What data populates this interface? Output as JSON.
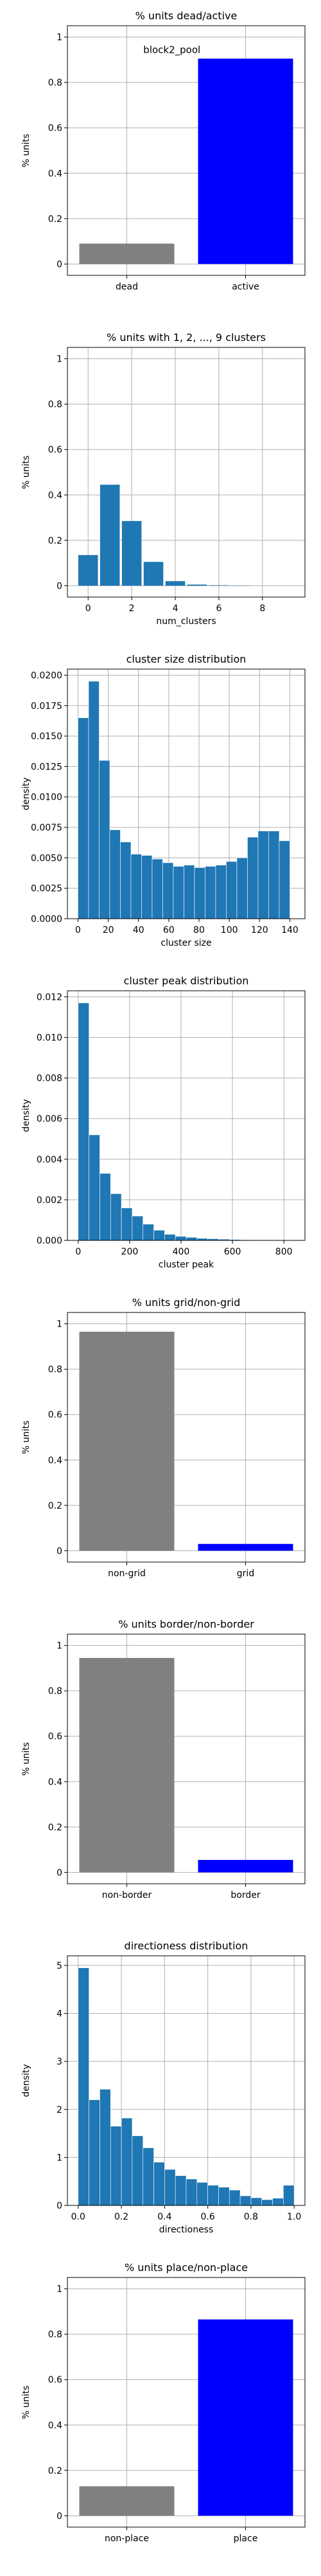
{
  "chart_data": [
    {
      "type": "bar",
      "title": "% units dead/active",
      "xlabel": "",
      "ylabel": "% units",
      "annotation": "block2_pool",
      "categories": [
        "dead",
        "active"
      ],
      "values": [
        0.09,
        0.905
      ],
      "colors": [
        "#808080",
        "#0000ff"
      ],
      "ylim": [
        -0.05,
        1.05
      ],
      "yticks": [
        0.0,
        0.2,
        0.4,
        0.6,
        0.8,
        1.0
      ],
      "grid": true
    },
    {
      "type": "bar",
      "title": "% units with 1, 2, ..., 9 clusters",
      "xlabel": "num_clusters",
      "ylabel": "% units",
      "x": [
        0,
        1,
        2,
        3,
        4,
        5,
        6,
        7,
        8,
        9
      ],
      "values": [
        0.135,
        0.445,
        0.285,
        0.105,
        0.02,
        0.005,
        0.002,
        0.001,
        0.0,
        0.0
      ],
      "bar_width": 0.9,
      "xlim": [
        -0.95,
        9.95
      ],
      "ylim": [
        -0.05,
        1.05
      ],
      "xticks": [
        0,
        2,
        4,
        6,
        8
      ],
      "yticks": [
        0.0,
        0.2,
        0.4,
        0.6,
        0.8,
        1.0
      ],
      "grid": true
    },
    {
      "type": "bar",
      "subtype": "histogram",
      "title": "cluster size distribution",
      "xlabel": "cluster size",
      "ylabel": "density",
      "bin_edges": [
        0,
        7,
        14,
        21,
        28,
        35,
        42,
        49,
        56,
        63,
        70,
        77,
        84,
        91,
        98,
        105,
        112,
        119,
        126,
        133,
        140,
        147
      ],
      "values": [
        0.0165,
        0.0195,
        0.013,
        0.0073,
        0.0063,
        0.0053,
        0.0052,
        0.0049,
        0.0046,
        0.0043,
        0.0044,
        0.0042,
        0.0043,
        0.0044,
        0.0047,
        0.005,
        0.0067,
        0.0072,
        0.0072,
        0.0064,
        0.0
      ],
      "xlim": [
        -7,
        150
      ],
      "ylim": [
        0,
        0.0205
      ],
      "xticks": [
        0,
        20,
        40,
        60,
        80,
        100,
        120,
        140
      ],
      "yticks": [
        "0.0000",
        "0.0025",
        "0.0050",
        "0.0075",
        "0.0100",
        "0.0125",
        "0.0150",
        "0.0175",
        "0.0200"
      ],
      "grid": true
    },
    {
      "type": "bar",
      "subtype": "histogram",
      "title": "cluster peak distribution",
      "xlabel": "cluster peak",
      "ylabel": "density",
      "bin_edges": [
        0,
        42,
        84,
        126,
        168,
        210,
        252,
        294,
        336,
        378,
        420,
        462,
        504,
        546,
        588,
        630,
        672,
        714,
        756,
        798,
        840
      ],
      "values": [
        0.0117,
        0.0052,
        0.0033,
        0.0023,
        0.0016,
        0.0012,
        0.0008,
        0.0005,
        0.0003,
        0.0002,
        0.00015,
        0.0001,
        8e-05,
        6e-05,
        4e-05,
        3e-05,
        2e-05,
        2e-05,
        1e-05,
        1e-05
      ],
      "xlim": [
        -42,
        882
      ],
      "ylim": [
        0,
        0.0123
      ],
      "xticks": [
        0,
        200,
        400,
        600,
        800
      ],
      "yticks": [
        "0.000",
        "0.002",
        "0.004",
        "0.006",
        "0.008",
        "0.010",
        "0.012"
      ],
      "grid": true
    },
    {
      "type": "bar",
      "title": "% units grid/non-grid",
      "xlabel": "",
      "ylabel": "% units",
      "categories": [
        "non-grid",
        "grid"
      ],
      "values": [
        0.965,
        0.03
      ],
      "colors": [
        "#808080",
        "#0000ff"
      ],
      "ylim": [
        -0.05,
        1.05
      ],
      "yticks": [
        0.0,
        0.2,
        0.4,
        0.6,
        0.8,
        1.0
      ],
      "grid": true
    },
    {
      "type": "bar",
      "title": "% units border/non-border",
      "xlabel": "",
      "ylabel": "% units",
      "categories": [
        "non-border",
        "border"
      ],
      "values": [
        0.945,
        0.055
      ],
      "colors": [
        "#808080",
        "#0000ff"
      ],
      "ylim": [
        -0.05,
        1.05
      ],
      "yticks": [
        0.0,
        0.2,
        0.4,
        0.6,
        0.8,
        1.0
      ],
      "grid": true
    },
    {
      "type": "bar",
      "subtype": "histogram",
      "title": "directioness distribution",
      "xlabel": "directioness",
      "ylabel": "density",
      "bin_edges": [
        0,
        0.05,
        0.1,
        0.15,
        0.2,
        0.25,
        0.3,
        0.35,
        0.4,
        0.45,
        0.5,
        0.55,
        0.6,
        0.65,
        0.7,
        0.75,
        0.8,
        0.85,
        0.9,
        0.95,
        1.0
      ],
      "values": [
        4.95,
        2.2,
        2.42,
        1.65,
        1.82,
        1.45,
        1.2,
        0.9,
        0.75,
        0.62,
        0.55,
        0.48,
        0.42,
        0.38,
        0.32,
        0.2,
        0.16,
        0.12,
        0.15,
        0.42
      ],
      "xlim": [
        -0.05,
        1.05
      ],
      "ylim": [
        0,
        5.2
      ],
      "xticks": [
        "0.0",
        "0.2",
        "0.4",
        "0.6",
        "0.8",
        "1.0"
      ],
      "yticks": [
        0,
        1,
        2,
        3,
        4,
        5
      ],
      "grid": true
    },
    {
      "type": "bar",
      "title": "% units place/non-place",
      "xlabel": "",
      "ylabel": "% units",
      "categories": [
        "non-place",
        "place"
      ],
      "values": [
        0.13,
        0.865
      ],
      "colors": [
        "#808080",
        "#0000ff"
      ],
      "ylim": [
        -0.05,
        1.05
      ],
      "yticks": [
        0.0,
        0.2,
        0.4,
        0.6,
        0.8,
        1.0
      ],
      "grid": true
    }
  ],
  "style": {
    "hist_color": "#1f77b4",
    "grid_color": "#b0b0b0",
    "axis_color": "#000000",
    "bar_edge_color": "#ffffff"
  }
}
